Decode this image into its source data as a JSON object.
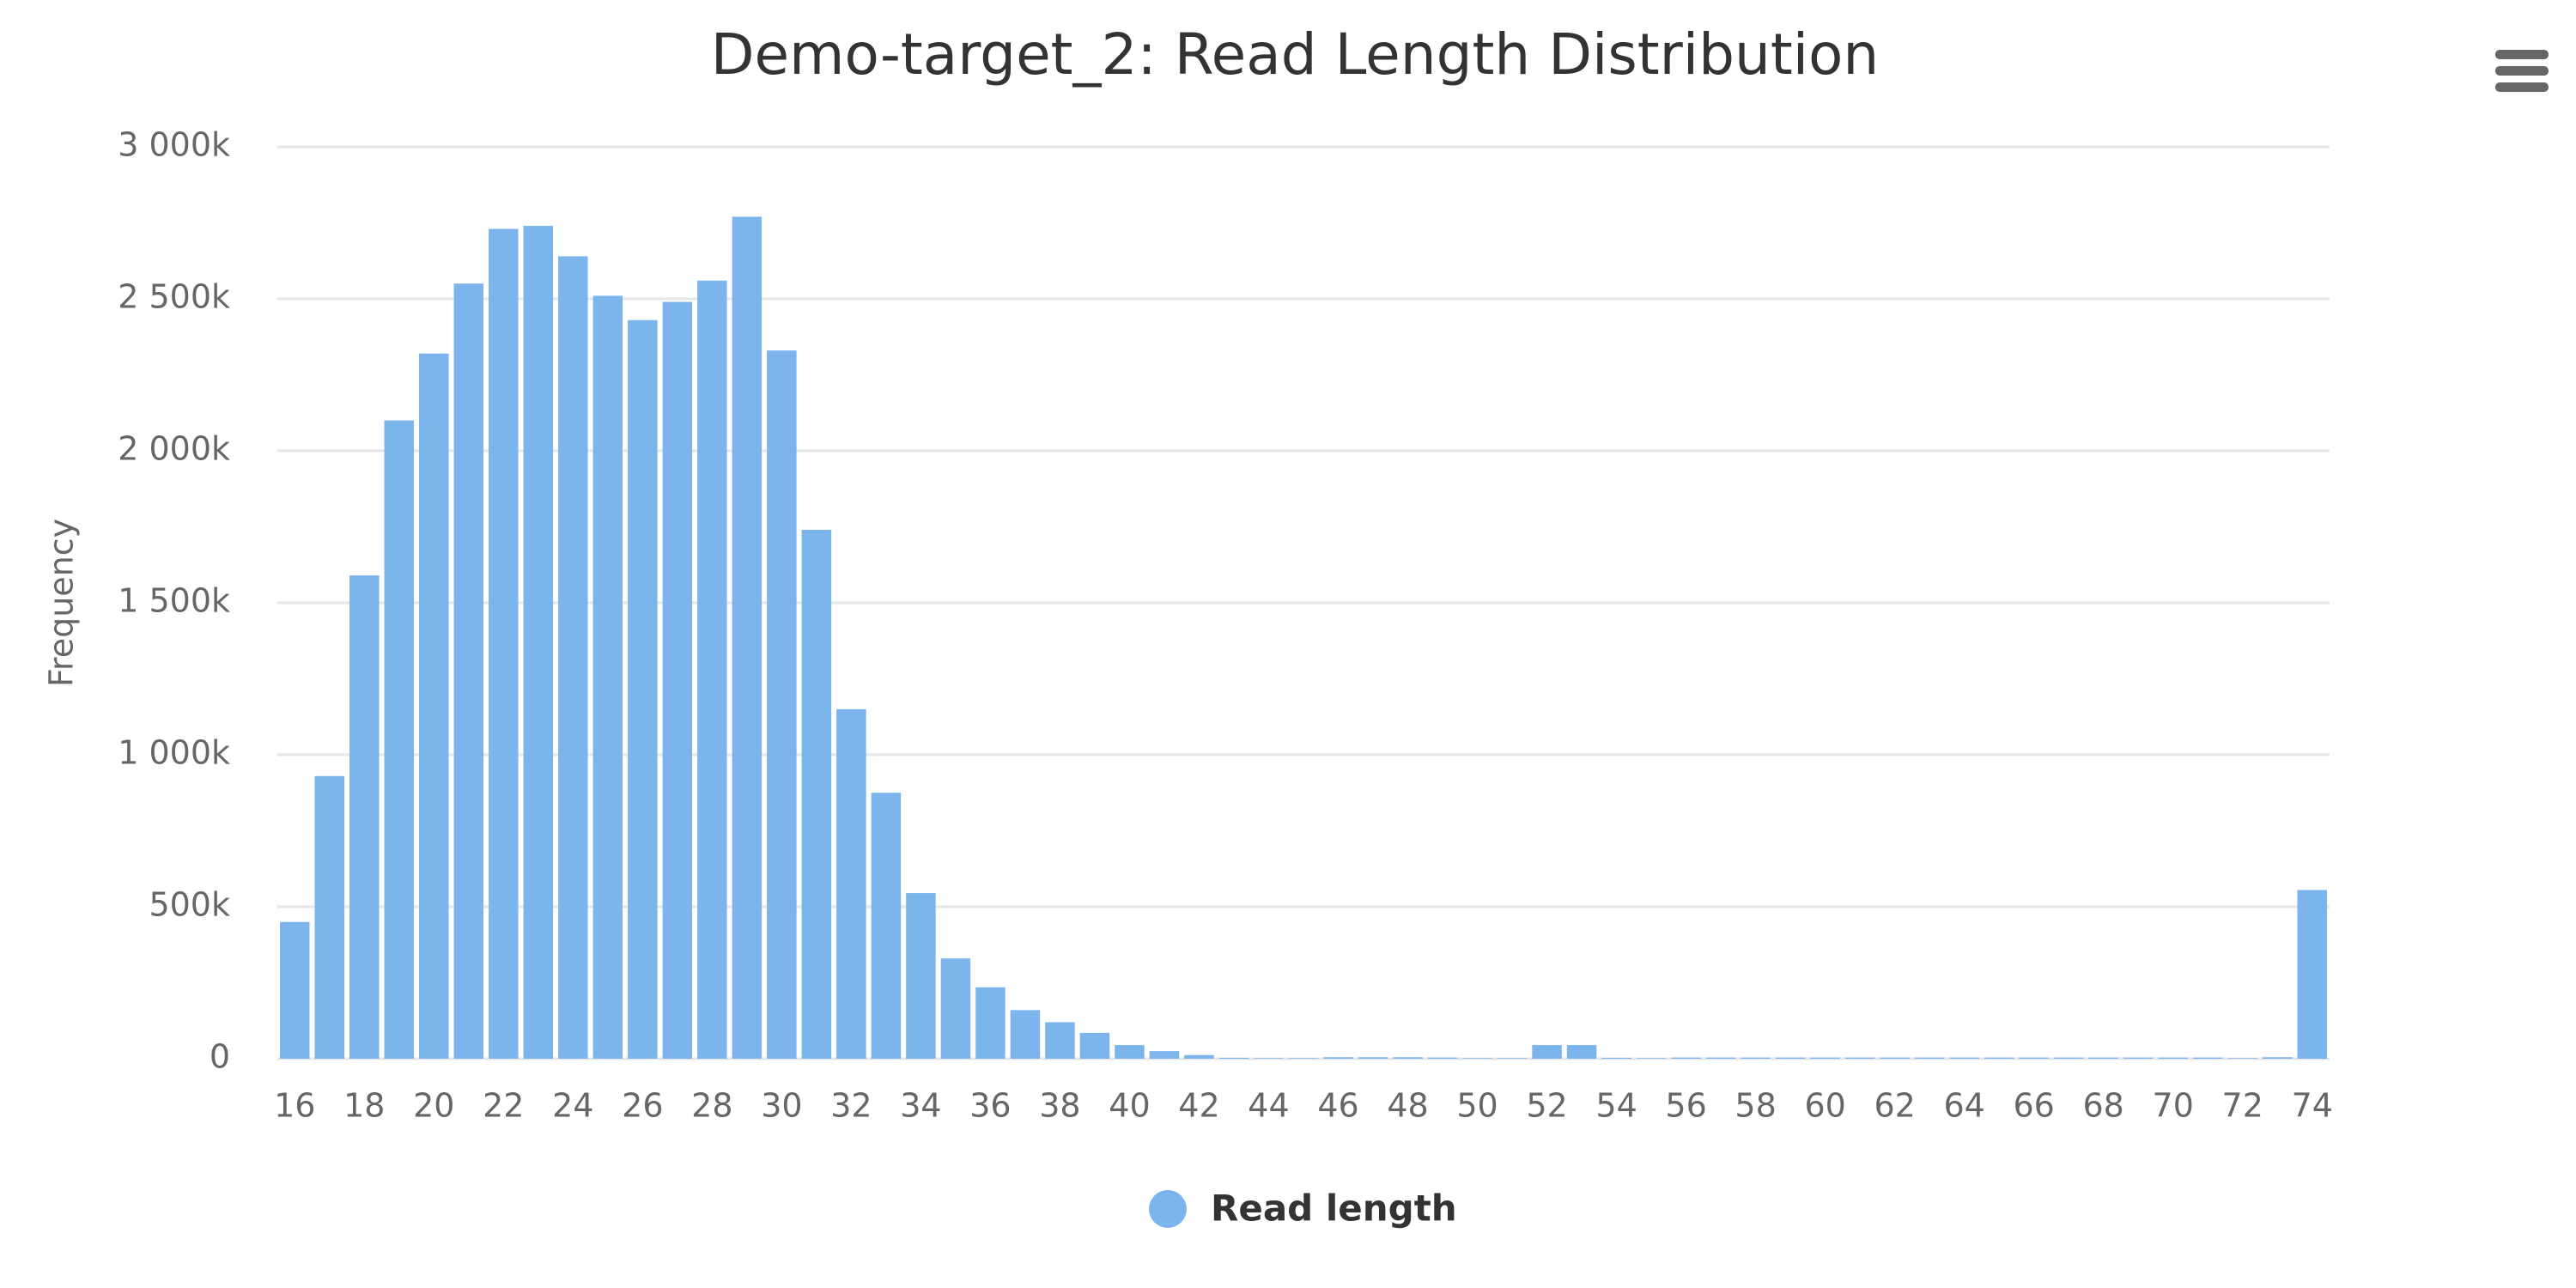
{
  "chart_data": {
    "type": "bar",
    "title": "Demo-target_2: Read Length Distribution",
    "y_label": "Frequency",
    "x": [
      16,
      17,
      18,
      19,
      20,
      21,
      22,
      23,
      24,
      25,
      26,
      27,
      28,
      29,
      30,
      31,
      32,
      33,
      34,
      35,
      36,
      37,
      38,
      39,
      40,
      41,
      42,
      43,
      44,
      45,
      46,
      47,
      48,
      49,
      50,
      51,
      52,
      53,
      54,
      55,
      56,
      57,
      58,
      59,
      60,
      61,
      62,
      63,
      64,
      65,
      66,
      67,
      68,
      69,
      70,
      71,
      72,
      73,
      74
    ],
    "series": [
      {
        "name": "Read length",
        "color": "#7cb5ec",
        "values": [
          450000,
          930000,
          1590000,
          2100000,
          2320000,
          2550000,
          2730000,
          2740000,
          2640000,
          2510000,
          2430000,
          2490000,
          2560000,
          2770000,
          2330000,
          1740000,
          1150000,
          875000,
          545000,
          330000,
          235000,
          160000,
          120000,
          85000,
          45000,
          25000,
          12000,
          3000,
          2000,
          2000,
          5000,
          5000,
          5000,
          4000,
          2000,
          2000,
          45000,
          45000,
          3000,
          2000,
          4000,
          4000,
          4000,
          4000,
          4000,
          4000,
          4000,
          4000,
          4000,
          4000,
          4000,
          4000,
          4000,
          4000,
          4000,
          4000,
          2000,
          5000,
          555000
        ]
      }
    ],
    "xlim": [
      15.5,
      74.5
    ],
    "xticks": [
      16,
      18,
      20,
      22,
      24,
      26,
      28,
      30,
      32,
      34,
      36,
      38,
      40,
      42,
      44,
      46,
      48,
      50,
      52,
      54,
      56,
      58,
      60,
      62,
      64,
      66,
      68,
      70,
      72,
      74
    ],
    "ylim": [
      0,
      3000000
    ],
    "yticks": [
      0,
      {
        "value": 500000,
        "label": "500k"
      },
      {
        "value": 1000000,
        "label": "1 000k"
      },
      {
        "value": 1500000,
        "label": "1 500k"
      },
      {
        "value": 2000000,
        "label": "2 000k"
      },
      {
        "value": 2500000,
        "label": "2 500k"
      },
      {
        "value": 3000000,
        "label": "3 000k"
      }
    ],
    "grid": true
  }
}
